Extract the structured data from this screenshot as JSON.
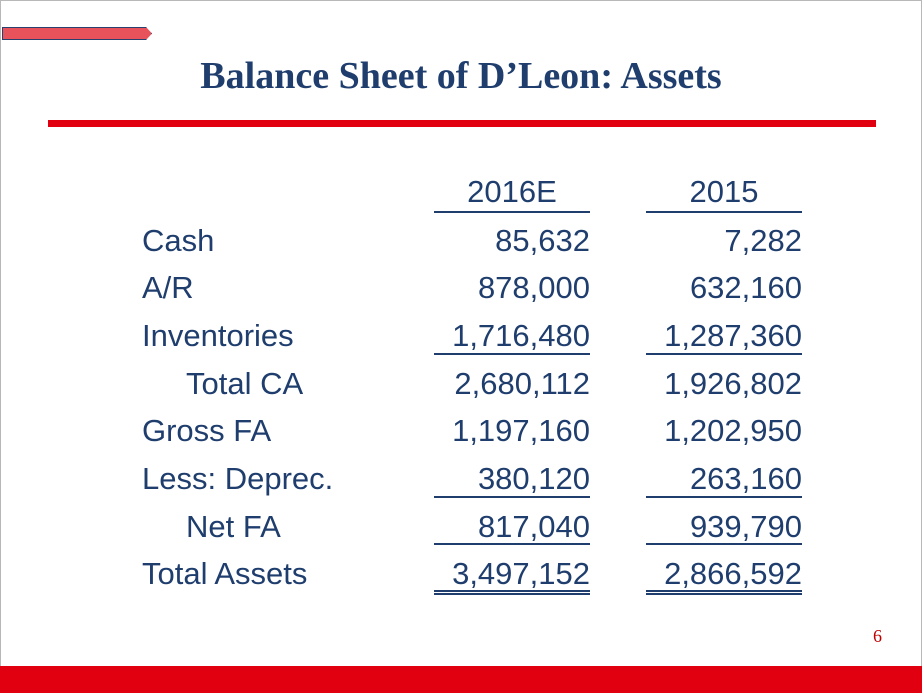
{
  "slide": {
    "title": "Balance Sheet of D’Leon: Assets",
    "page_number": "6"
  },
  "columns": [
    "2016E",
    "2015"
  ],
  "rows": [
    {
      "label": "Cash",
      "values": [
        "85,632",
        "7,282"
      ]
    },
    {
      "label": "A/R",
      "values": [
        "878,000",
        "632,160"
      ]
    },
    {
      "label": "Inventories",
      "values": [
        "1,716,480",
        "1,287,360"
      ]
    },
    {
      "label": "Total CA",
      "values": [
        "2,680,112",
        "1,926,802"
      ]
    },
    {
      "label": "Gross FA",
      "values": [
        "1,197,160",
        "1,202,950"
      ]
    },
    {
      "label": "Less: Deprec.",
      "values": [
        "380,120",
        "263,160"
      ]
    },
    {
      "label": "Net FA",
      "values": [
        "817,040",
        "939,790"
      ]
    },
    {
      "label": "Total Assets",
      "values": [
        "3,497,152",
        "2,866,592"
      ]
    }
  ],
  "colors": {
    "title": "#1f3e6e",
    "accent_red": "#e0000f",
    "text": "#1f3e6e"
  }
}
